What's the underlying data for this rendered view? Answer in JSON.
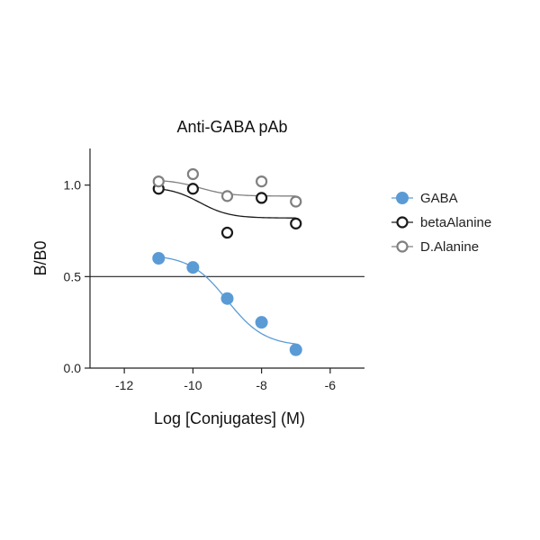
{
  "chart_data": {
    "type": "scatter",
    "title": "Anti-GABA pAb",
    "xlabel": "Log [Conjugates] (M)",
    "ylabel": "B/B0",
    "xlim": [
      -13,
      -5
    ],
    "ylim": [
      0,
      1.2
    ],
    "xticks": [
      -12,
      -10,
      -8,
      -6
    ],
    "xtick_labels": [
      "-12",
      "-10",
      "-8",
      "-6"
    ],
    "yticks": [
      0,
      0.5,
      1.0
    ],
    "ytick_labels": [
      "0.0",
      "0.5",
      "1.0"
    ],
    "reference_line_y": 0.5,
    "legend_position": "right",
    "series": [
      {
        "name": "GABA",
        "marker": "filled-circle",
        "color": "#5b9bd5",
        "x": [
          -11,
          -10,
          -9,
          -8,
          -7
        ],
        "y": [
          0.6,
          0.55,
          0.38,
          0.25,
          0.1
        ],
        "fit": {
          "top": 0.62,
          "bottom": 0.12,
          "logec50": -9.0,
          "hill": 0.8
        }
      },
      {
        "name": "betaAlanine",
        "marker": "open-circle",
        "color": "#1a1a1a",
        "x": [
          -11,
          -10,
          -9,
          -8,
          -7
        ],
        "y": [
          0.98,
          0.98,
          0.74,
          0.93,
          0.79
        ],
        "fit": {
          "top": 0.99,
          "bottom": 0.82,
          "logec50": -9.8,
          "hill": 1.0
        }
      },
      {
        "name": "D.Alanine",
        "marker": "open-circle",
        "color": "#808080",
        "x": [
          -11,
          -10,
          -9,
          -8,
          -7
        ],
        "y": [
          1.02,
          1.06,
          0.94,
          1.02,
          0.91
        ],
        "fit": {
          "top": 1.03,
          "bottom": 0.94,
          "logec50": -9.8,
          "hill": 1.0
        }
      }
    ]
  }
}
